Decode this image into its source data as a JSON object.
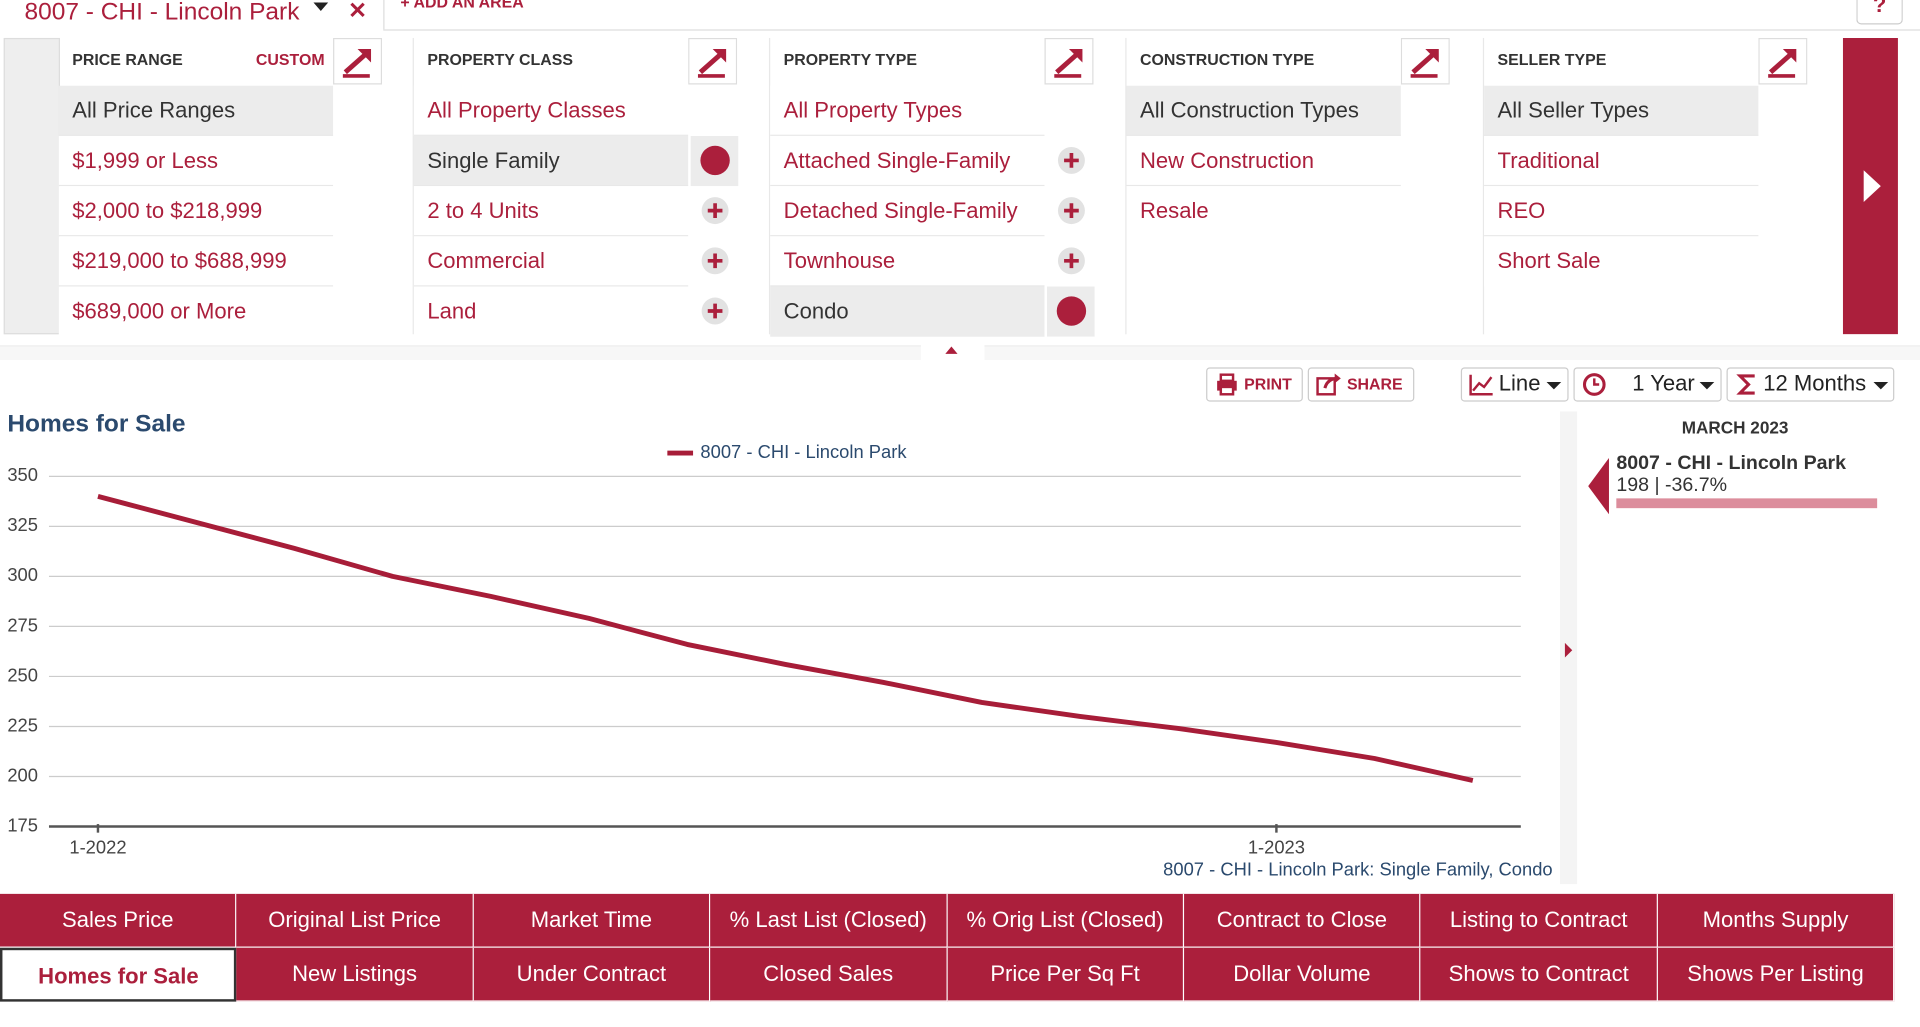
{
  "area_tab": {
    "label": "8007 - CHI - Lincoln Park",
    "add_area": "+ ADD AN AREA",
    "help": "?"
  },
  "filters": [
    {
      "title": "PRICE RANGE",
      "custom": "CUSTOM",
      "items": [
        {
          "label": "All Price Ranges",
          "selected": true
        },
        {
          "label": "$1,999 or Less"
        },
        {
          "label": "$2,000 to $218,999"
        },
        {
          "label": "$219,000 to $688,999"
        },
        {
          "label": "$689,000 or More"
        }
      ]
    },
    {
      "title": "PROPERTY CLASS",
      "items": [
        {
          "label": "All Property Classes"
        },
        {
          "label": "Single Family",
          "selected": true,
          "toggle": true
        },
        {
          "label": "2 to 4 Units",
          "toggle": true
        },
        {
          "label": "Commercial",
          "toggle": true
        },
        {
          "label": "Land",
          "toggle": true
        }
      ]
    },
    {
      "title": "PROPERTY TYPE",
      "items": [
        {
          "label": "All Property Types"
        },
        {
          "label": "Attached Single-Family",
          "toggle": true
        },
        {
          "label": "Detached Single-Family",
          "toggle": true
        },
        {
          "label": "Townhouse",
          "toggle": true
        },
        {
          "label": "Condo",
          "selected": true,
          "toggle": true
        }
      ]
    },
    {
      "title": "CONSTRUCTION TYPE",
      "items": [
        {
          "label": "All Construction Types",
          "selected": true
        },
        {
          "label": "New Construction"
        },
        {
          "label": "Resale"
        }
      ]
    },
    {
      "title": "SELLER TYPE",
      "items": [
        {
          "label": "All Seller Types",
          "selected": true
        },
        {
          "label": "Traditional"
        },
        {
          "label": "REO"
        },
        {
          "label": "Short Sale"
        }
      ]
    }
  ],
  "toolbar": {
    "print": "PRINT",
    "share": "SHARE",
    "chart_type": "Line",
    "period": "1 Year",
    "aggregation": "12 Months"
  },
  "chart_data": {
    "type": "line",
    "title": "Homes for Sale",
    "footnote": "8007 - CHI - Lincoln Park: Single Family, Condo",
    "categories": [
      "1-2022",
      null,
      null,
      null,
      null,
      null,
      null,
      null,
      null,
      null,
      null,
      null,
      "1-2023",
      null,
      null
    ],
    "series": [
      {
        "name": "8007 - CHI - Lincoln Park",
        "color": "#a71d38",
        "values": [
          340,
          327,
          314,
          300,
          290,
          279,
          266,
          256,
          247,
          237,
          230,
          224,
          217,
          209,
          198
        ]
      }
    ],
    "ylim": [
      175,
      350
    ],
    "yticks": [
      175,
      200,
      225,
      250,
      275,
      300,
      325,
      350
    ],
    "grid": true
  },
  "tooltip": {
    "date": "MARCH 2023",
    "name": "8007 - CHI - Lincoln Park",
    "value": "198 | -36.7%"
  },
  "metrics": {
    "rows": [
      [
        "Sales Price",
        "Original List Price",
        "Market Time",
        "% Last List (Closed)",
        "% Orig List (Closed)",
        "Contract to Close",
        "Listing to Contract",
        "Months Supply"
      ],
      [
        "Homes for Sale",
        "New Listings",
        "Under Contract",
        "Closed Sales",
        "Price Per Sq Ft",
        "Dollar Volume",
        "Shows to Contract",
        "Shows Per Listing"
      ]
    ],
    "selected": [
      1,
      0
    ]
  }
}
